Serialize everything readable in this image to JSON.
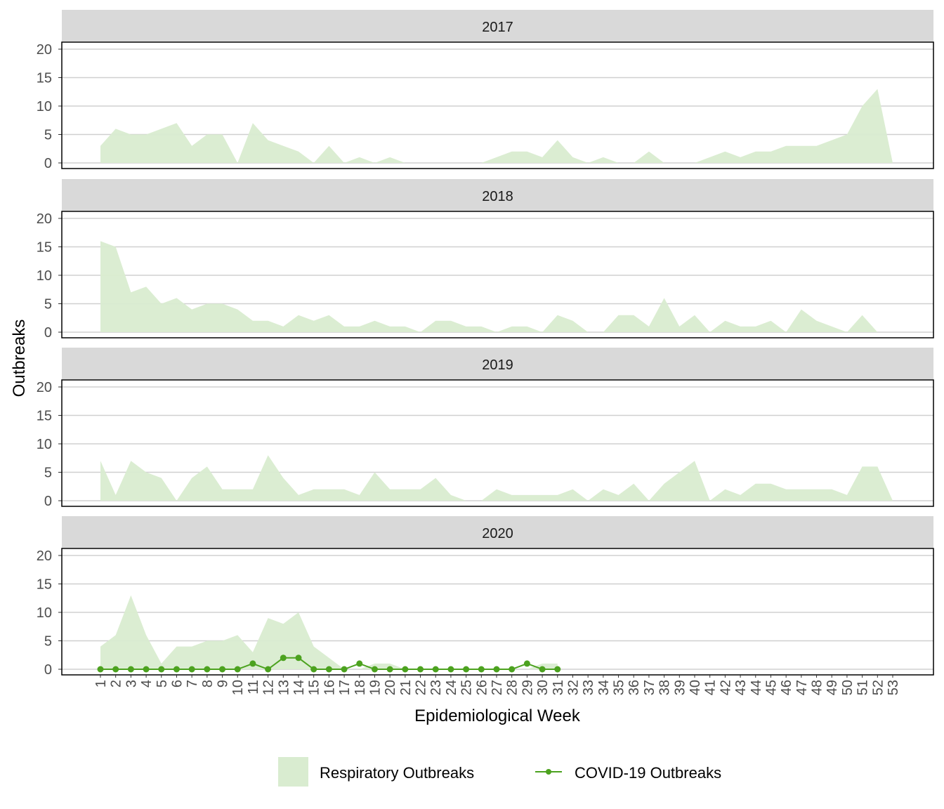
{
  "chart_data": {
    "type": "area",
    "xlabel": "Epidemiological Week",
    "ylabel": "Outbreaks",
    "ylim": [
      0,
      20
    ],
    "yticks": [
      0,
      5,
      10,
      15,
      20
    ],
    "xticks": [
      1,
      2,
      3,
      4,
      5,
      6,
      7,
      8,
      9,
      10,
      11,
      12,
      13,
      14,
      15,
      16,
      17,
      18,
      19,
      20,
      21,
      22,
      23,
      24,
      25,
      26,
      27,
      28,
      29,
      30,
      31,
      32,
      33,
      34,
      35,
      36,
      37,
      38,
      39,
      40,
      41,
      42,
      43,
      44,
      45,
      46,
      47,
      48,
      49,
      50,
      51,
      52,
      53
    ],
    "grid": "horizontal",
    "legend_position": "bottom",
    "colors": {
      "respiratory": "#d9ecd0",
      "covid": "#4ca21f",
      "strip": "#d9d9d9",
      "grid": "#d0d0d0"
    },
    "legend": [
      {
        "label": "Respiratory Outbreaks",
        "kind": "area"
      },
      {
        "label": "COVID-19 Outbreaks",
        "kind": "line-point"
      }
    ],
    "panels": [
      {
        "title": "2017",
        "respiratory": [
          3,
          6,
          5,
          5,
          6,
          7,
          3,
          5,
          5,
          0,
          7,
          4,
          3,
          2,
          0,
          3,
          0,
          1,
          0,
          1,
          0,
          0,
          0,
          0,
          0,
          0,
          1,
          2,
          2,
          1,
          4,
          1,
          0,
          1,
          0,
          0,
          2,
          0,
          0,
          0,
          1,
          2,
          1,
          2,
          2,
          3,
          3,
          3,
          4,
          5,
          10,
          13,
          0
        ],
        "covid": []
      },
      {
        "title": "2018",
        "respiratory": [
          16,
          15,
          7,
          8,
          5,
          6,
          4,
          5,
          5,
          4,
          2,
          2,
          1,
          3,
          2,
          3,
          1,
          1,
          2,
          1,
          1,
          0,
          2,
          2,
          1,
          1,
          0,
          1,
          1,
          0,
          3,
          2,
          0,
          0,
          3,
          3,
          1,
          6,
          1,
          3,
          0,
          2,
          1,
          1,
          2,
          0,
          4,
          2,
          1,
          0,
          3,
          0
        ],
        "covid": []
      },
      {
        "title": "2019",
        "respiratory": [
          7,
          1,
          7,
          5,
          4,
          0,
          4,
          6,
          2,
          2,
          2,
          8,
          4,
          1,
          2,
          2,
          2,
          1,
          5,
          2,
          2,
          2,
          4,
          1,
          0,
          0,
          2,
          1,
          1,
          1,
          1,
          2,
          0,
          2,
          1,
          3,
          0,
          3,
          5,
          7,
          0,
          2,
          1,
          3,
          3,
          2,
          2,
          2,
          2,
          1,
          6,
          6,
          0
        ],
        "covid": []
      },
      {
        "title": "2020",
        "respiratory": [
          4,
          6,
          13,
          6,
          1,
          4,
          4,
          5,
          5,
          6,
          3,
          9,
          8,
          10,
          4,
          2,
          0,
          0,
          1,
          1,
          0,
          0,
          0,
          0,
          0,
          0,
          0,
          0,
          0,
          1,
          1
        ],
        "covid": [
          0,
          0,
          0,
          0,
          0,
          0,
          0,
          0,
          0,
          0,
          1,
          0,
          2,
          2,
          0,
          0,
          0,
          1,
          0,
          0,
          0,
          0,
          0,
          0,
          0,
          0,
          0,
          0,
          1,
          0,
          0
        ]
      }
    ]
  }
}
